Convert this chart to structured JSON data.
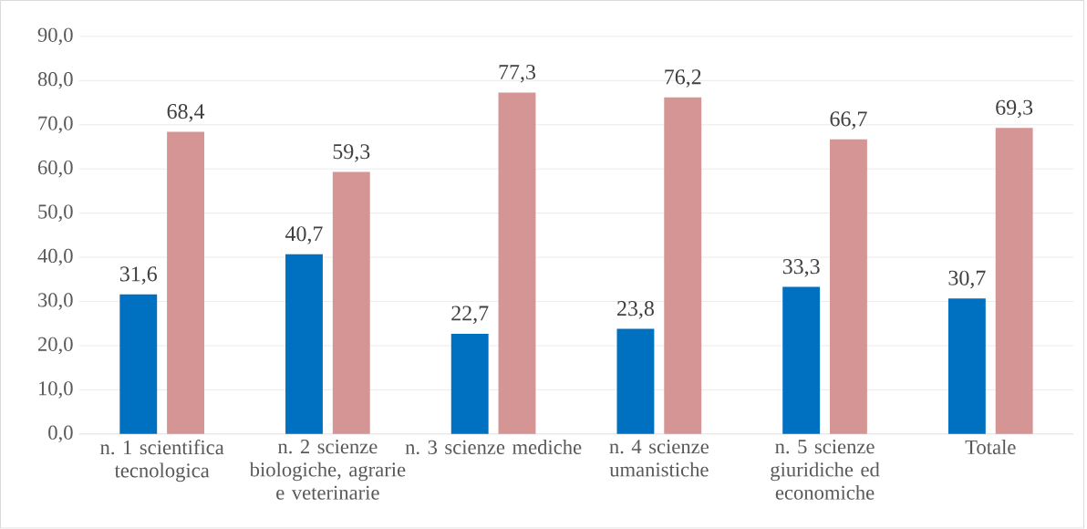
{
  "chart_data": {
    "type": "bar",
    "categories": [
      "n. 1 scientifica tecnologica",
      "n. 2 scienze biologiche, agrarie e veterinarie",
      "n. 3 scienze mediche",
      "n. 4 scienze umanistiche",
      "n. 5 scienze giuridiche ed economiche",
      "Totale"
    ],
    "series": [
      {
        "color": "#0070c0",
        "values": [
          31.6,
          40.7,
          22.7,
          23.8,
          33.3,
          30.7
        ],
        "value_labels": [
          "31,6",
          "40,7",
          "22,7",
          "23,8",
          "33,3",
          "30,7"
        ]
      },
      {
        "color": "#d59595",
        "values": [
          68.4,
          59.3,
          77.3,
          76.2,
          66.7,
          69.3
        ],
        "value_labels": [
          "68,4",
          "59,3",
          "77,3",
          "76,2",
          "66,7",
          "69,3"
        ]
      }
    ],
    "ylim": [
      0,
      90
    ],
    "yticks": [
      {
        "value": 0,
        "label": "0,0"
      },
      {
        "value": 10,
        "label": "10,0"
      },
      {
        "value": 20,
        "label": "20,0"
      },
      {
        "value": 30,
        "label": "30,0"
      },
      {
        "value": 40,
        "label": "40,0"
      },
      {
        "value": 50,
        "label": "50,0"
      },
      {
        "value": 60,
        "label": "60,0"
      },
      {
        "value": 70,
        "label": "70,0"
      },
      {
        "value": 80,
        "label": "80,0"
      },
      {
        "value": 90,
        "label": "90,0"
      }
    ],
    "grid": "y"
  }
}
